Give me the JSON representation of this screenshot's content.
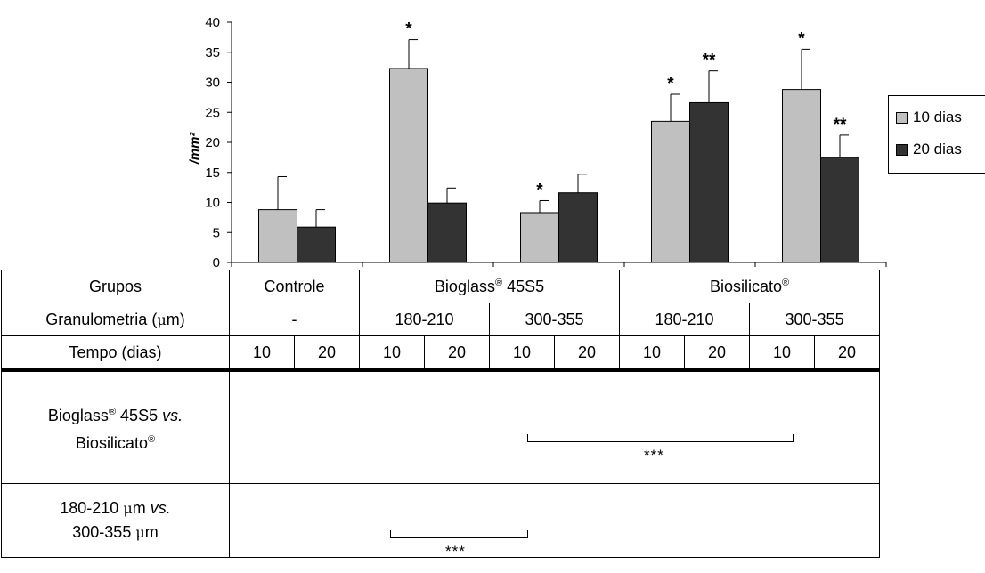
{
  "chart_data": {
    "type": "bar",
    "ylabel": "/mm²",
    "ylim": [
      0,
      40
    ],
    "yticks": [
      "0",
      "5",
      "10",
      "15",
      "20",
      "25",
      "30",
      "35",
      "40"
    ],
    "categories": [
      "Controle",
      "Bioglass® 45S5 180-210",
      "Bioglass® 45S5 300-355",
      "Biosilicato® 180-210",
      "Biosilicato® 300-355"
    ],
    "series": [
      {
        "name": "10 dias",
        "color": "#c0c0c0",
        "values": [
          8.8,
          32.3,
          8.3,
          23.5,
          28.8
        ],
        "errors": [
          5.5,
          4.8,
          2.0,
          4.5,
          6.7
        ],
        "marks": [
          "",
          "*",
          "*",
          "*",
          "*"
        ]
      },
      {
        "name": "20 dias",
        "color": "#333333",
        "values": [
          5.9,
          9.9,
          11.6,
          26.6,
          17.5
        ],
        "errors": [
          2.9,
          2.5,
          3.1,
          5.3,
          3.7
        ],
        "marks": [
          "",
          "",
          "",
          "**",
          "**"
        ]
      }
    ],
    "legend_position": "right",
    "grid": false
  },
  "table": {
    "row_groups": {
      "label": "Grupos",
      "controle": "Controle",
      "bioglass": "Bioglass",
      "bioglass_suffix": " 45S5",
      "biosilicato": "Biosilicato",
      "reg": "®"
    },
    "row_gran": {
      "label_pre": "Granulometria (",
      "mu": "μ",
      "label_post": "m)",
      "controle": "-",
      "cells": [
        "180-210",
        "300-355",
        "180-210",
        "300-355"
      ]
    },
    "row_tempo": {
      "label": "Tempo (dias)",
      "cells": [
        "10",
        "20",
        "10",
        "20",
        "10",
        "20",
        "10",
        "20",
        "10",
        "20"
      ]
    },
    "row_cmp1": {
      "line1_a": "Bioglass",
      "line1_b": " 45S5 ",
      "line1_vs": "vs.",
      "line2": "Biosilicato",
      "reg": "®",
      "stars": "***"
    },
    "row_cmp2": {
      "line1_a": "180-210 ",
      "mu": "μ",
      "line1_b": "m ",
      "line1_vs": "vs.",
      "line2_a": "300-355 ",
      "line2_b": "m",
      "stars": "***"
    }
  }
}
